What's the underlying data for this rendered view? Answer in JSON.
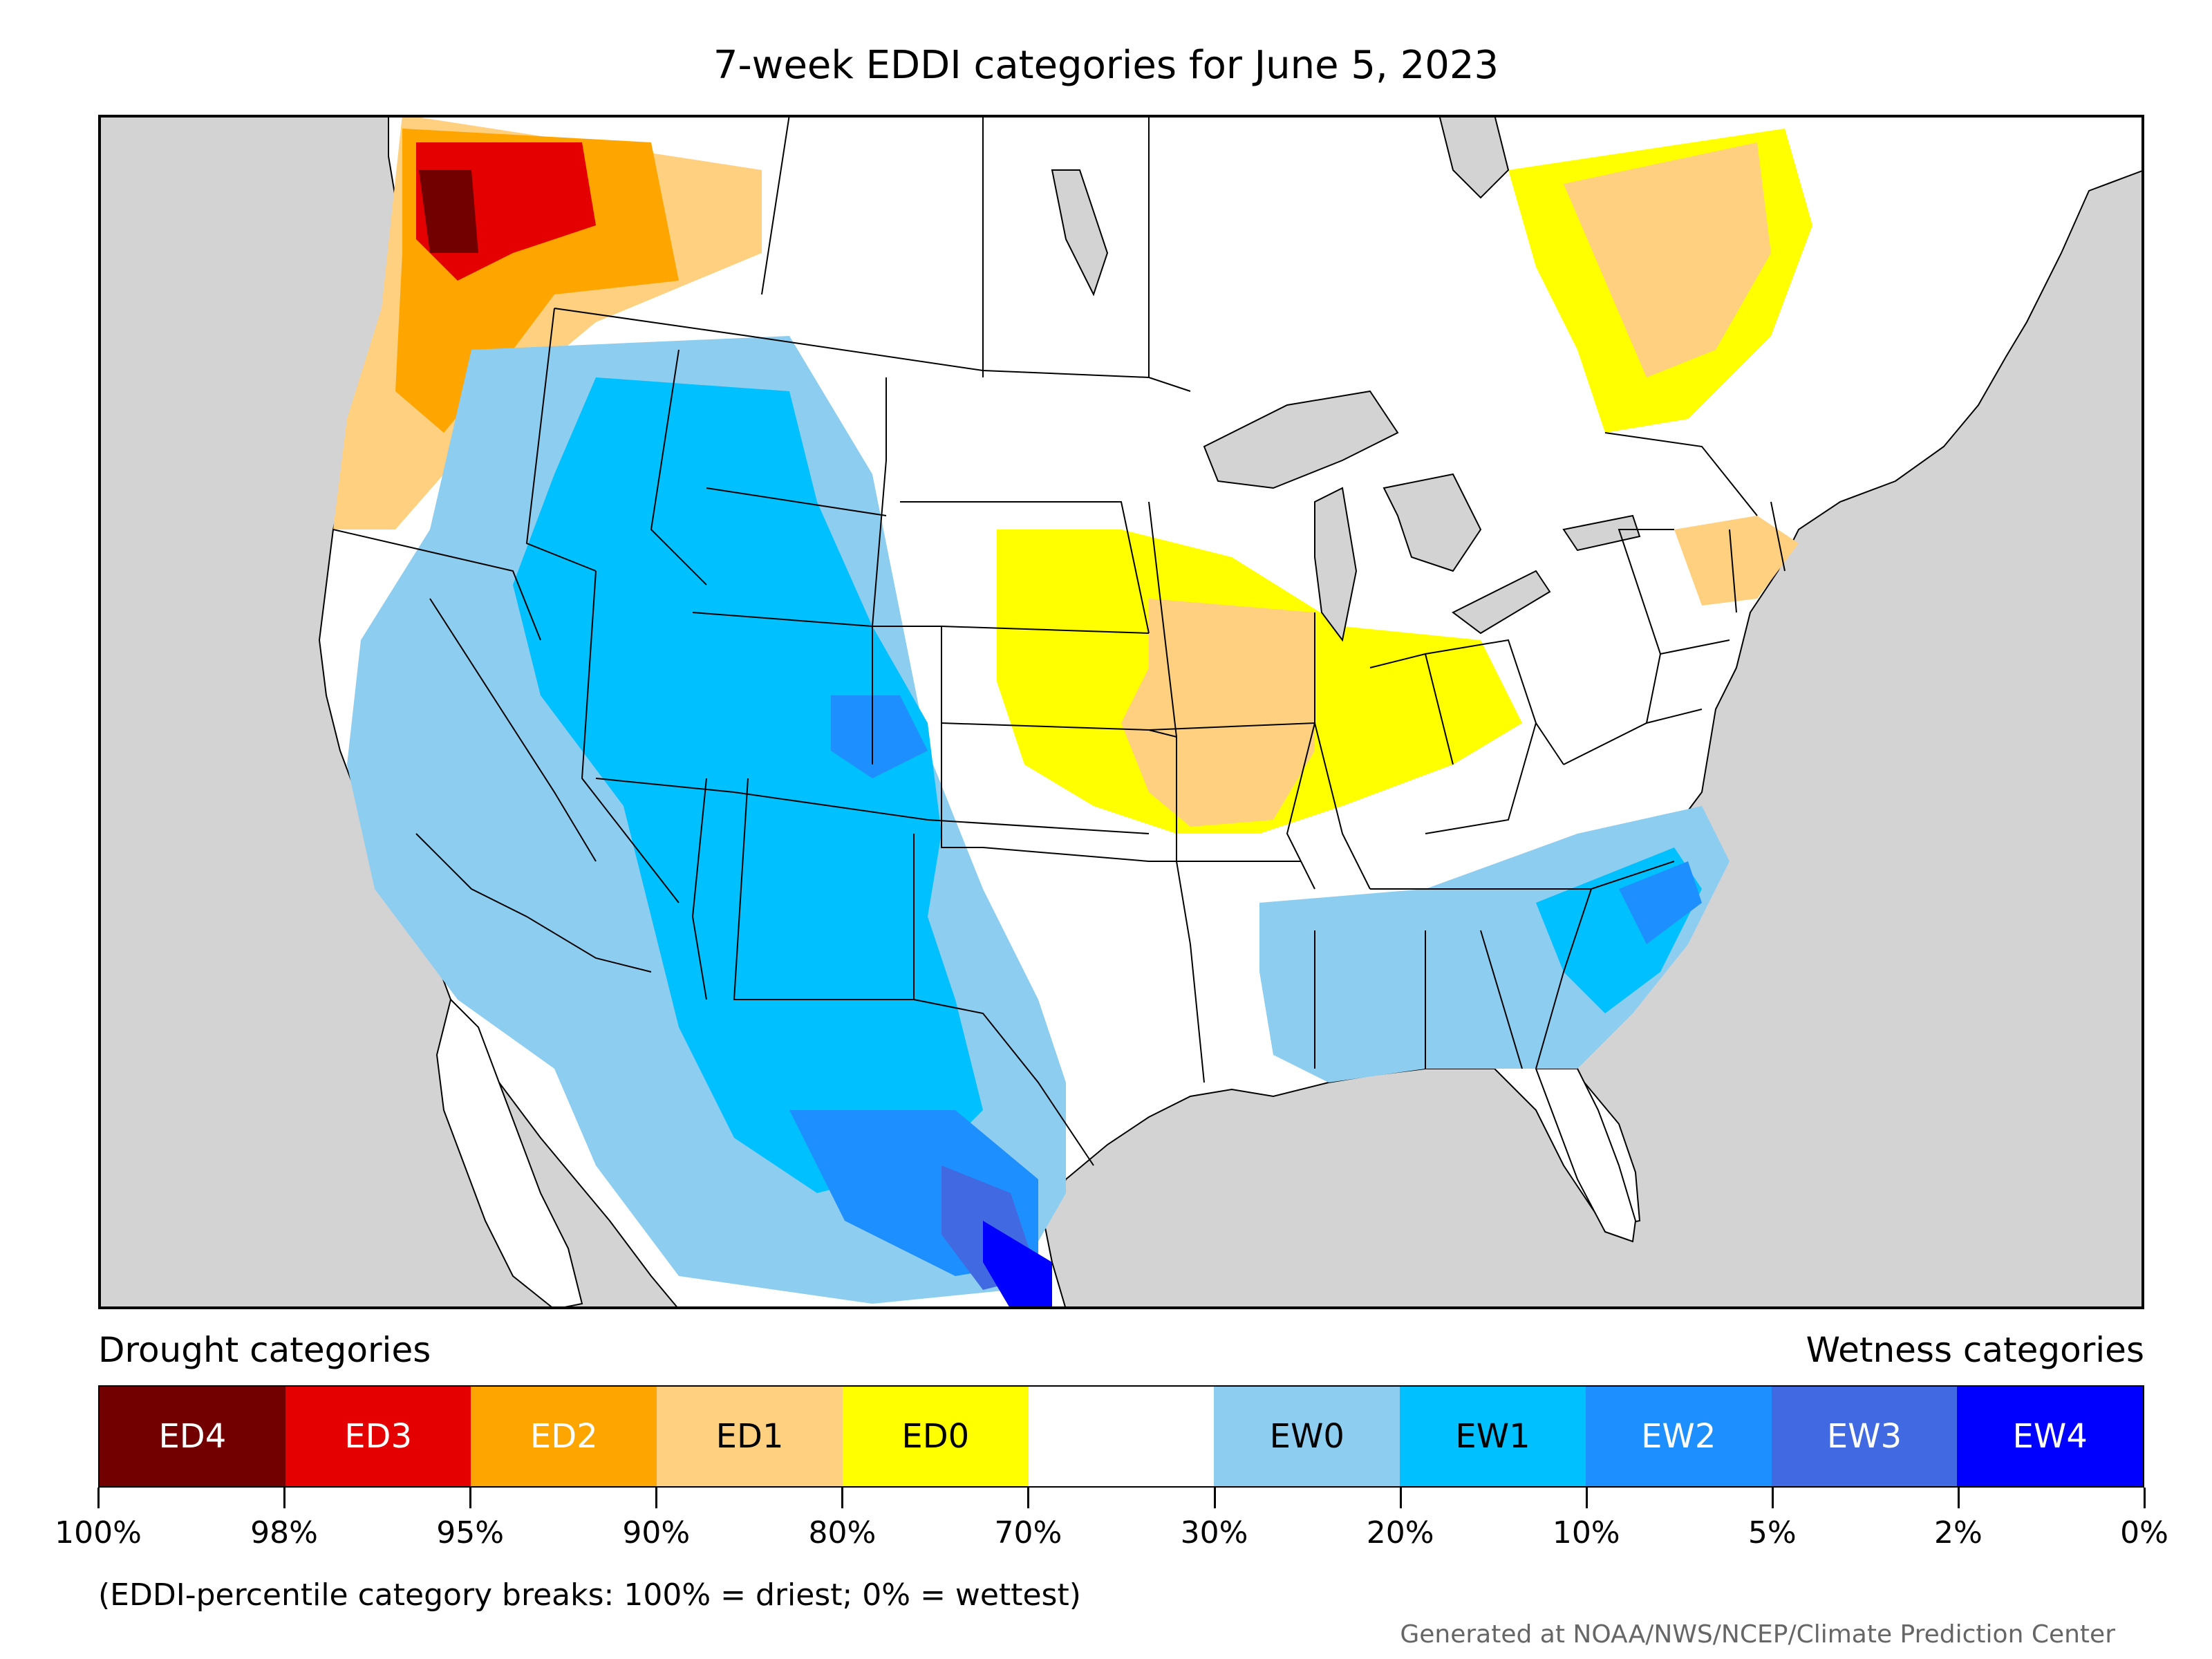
{
  "title": "7-week EDDI categories for June 5, 2023",
  "legend": {
    "drought_label": "Drought categories",
    "wetness_label": "Wetness categories",
    "categories": [
      {
        "label": "ED4",
        "color": "#720000",
        "text_color": "#ffffff"
      },
      {
        "label": "ED3",
        "color": "#e40000",
        "text_color": "#ffffff"
      },
      {
        "label": "ED2",
        "color": "#ffa500",
        "text_color": "#ffffff"
      },
      {
        "label": "ED1",
        "color": "#fed07f",
        "text_color": "#000000"
      },
      {
        "label": "ED0",
        "color": "#ffff00",
        "text_color": "#000000"
      },
      {
        "label": "",
        "color": "#ffffff",
        "text_color": "#000000"
      },
      {
        "label": "EW0",
        "color": "#8ccdf0",
        "text_color": "#000000"
      },
      {
        "label": "EW1",
        "color": "#00c0ff",
        "text_color": "#000000"
      },
      {
        "label": "EW2",
        "color": "#1e8fff",
        "text_color": "#ffffff"
      },
      {
        "label": "EW3",
        "color": "#4169e1",
        "text_color": "#ffffff"
      },
      {
        "label": "EW4",
        "color": "#0000ff",
        "text_color": "#ffffff"
      }
    ],
    "tick_labels": [
      "100%",
      "98%",
      "95%",
      "90%",
      "80%",
      "70%",
      "30%",
      "20%",
      "10%",
      "5%",
      "2%",
      "0%"
    ]
  },
  "note": "(EDDI-percentile category breaks: 100% = driest; 0% = wettest)",
  "credit": "Generated at NOAA/NWS/NCEP/Climate Prediction Center",
  "map_colors": {
    "ocean": "#d3d3d3",
    "land": "#ffffff",
    "lakes": "#d3d3d3",
    "boundaries": "#000000"
  }
}
